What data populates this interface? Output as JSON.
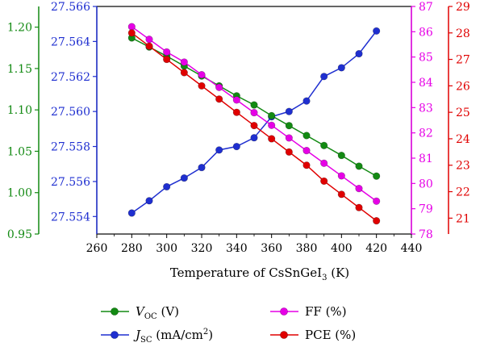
{
  "chart_data": {
    "type": "line",
    "xlabel": "Temperature of CsSnGeI",
    "xlabel_sub": "3",
    "xlabel_unit": " (K)",
    "xlim": [
      260,
      440
    ],
    "x_ticks": [
      "260",
      "280",
      "300",
      "320",
      "340",
      "360",
      "380",
      "400",
      "420",
      "440"
    ],
    "x": [
      280,
      290,
      300,
      310,
      320,
      330,
      340,
      350,
      360,
      370,
      380,
      390,
      400,
      410,
      420
    ],
    "axes": {
      "voc": {
        "color": "#138a13",
        "ylim": [
          0.95,
          1.225
        ],
        "ticks": [
          "0.95",
          "1.00",
          "1.05",
          "1.10",
          "1.15",
          "1.20"
        ]
      },
      "jsc": {
        "color": "#1f2fd0",
        "ylim": [
          27.553,
          27.566
        ],
        "ticks": [
          "27.554",
          "27.556",
          "27.558",
          "27.560",
          "27.562",
          "27.564",
          "27.566"
        ]
      },
      "ff": {
        "color": "#e600e6",
        "ylim": [
          78,
          87
        ],
        "ticks": [
          "78",
          "79",
          "80",
          "81",
          "82",
          "83",
          "84",
          "85",
          "86",
          "87"
        ]
      },
      "pce": {
        "color": "#e00000",
        "ylim": [
          20.4,
          29
        ],
        "ticks": [
          "21",
          "22",
          "23",
          "24",
          "25",
          "26",
          "27",
          "28",
          "29"
        ]
      }
    },
    "series": [
      {
        "key": "voc",
        "name": "V",
        "name_sub": "OC",
        "name_unit": " (V)",
        "color": "#138a13",
        "values": [
          1.187,
          1.176,
          1.165,
          1.153,
          1.141,
          1.129,
          1.117,
          1.106,
          1.093,
          1.081,
          1.069,
          1.057,
          1.045,
          1.032,
          1.02
        ]
      },
      {
        "key": "jsc",
        "name": "J",
        "name_sub": "SC",
        "name_unit": " (mA/cm",
        "name_sup": "2",
        "name_tail": ")",
        "color": "#1f2fd0",
        "values": [
          27.5542,
          27.5549,
          27.5557,
          27.5562,
          27.5568,
          27.5578,
          27.558,
          27.5585,
          27.5597,
          27.56,
          27.5606,
          27.562,
          27.5625,
          27.5633,
          27.5646
        ]
      },
      {
        "key": "ff",
        "name": "FF (%)",
        "color": "#e600e6",
        "values": [
          86.2,
          85.7,
          85.2,
          84.8,
          84.3,
          83.8,
          83.3,
          82.8,
          82.3,
          81.8,
          81.3,
          80.8,
          80.3,
          79.8,
          79.3
        ]
      },
      {
        "key": "pce",
        "name": "PCE (%)",
        "color": "#e00000",
        "values": [
          28.0,
          27.5,
          27.0,
          26.5,
          26.0,
          25.5,
          25.0,
          24.5,
          24.0,
          23.5,
          23.0,
          22.4,
          21.9,
          21.4,
          20.9
        ]
      }
    ],
    "legend_position": "bottom"
  }
}
